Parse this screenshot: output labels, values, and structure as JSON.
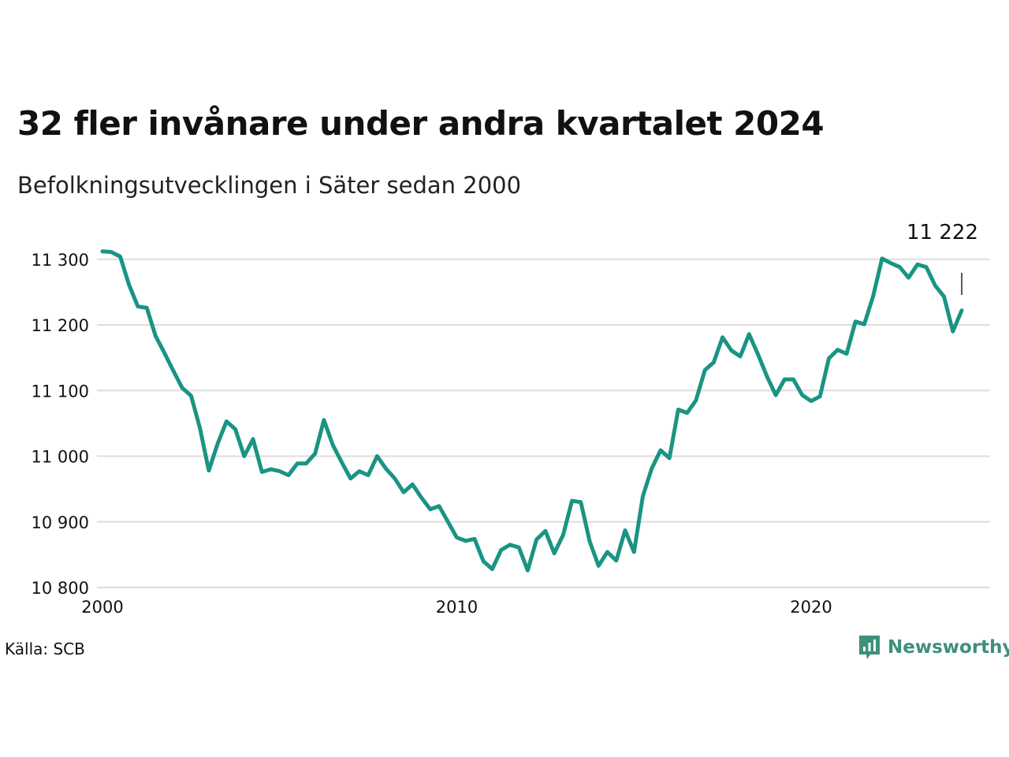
{
  "header": {
    "title": "32 fler invånare under andra kvartalet 2024",
    "subtitle": "Befolkningsutvecklingen i Säter sedan 2000"
  },
  "footer": {
    "source": "Källa: SCB",
    "brand": "Newsworthy"
  },
  "colors": {
    "line": "#1a9483",
    "grid": "#dddddd",
    "brand": "#3f8f7b",
    "text": "#111111"
  },
  "icons": {
    "brand_logo": "newsworthy-logo-icon"
  },
  "chart_data": {
    "type": "line",
    "x_start": 2000,
    "x_step": 0.25,
    "xlim": [
      2000,
      2025
    ],
    "ylim": [
      10800,
      11350
    ],
    "y_ticks": [
      10800,
      10900,
      11000,
      11100,
      11200,
      11300
    ],
    "y_tick_labels": [
      "10 800",
      "10 900",
      "11 000",
      "11 100",
      "11 200",
      "11 300"
    ],
    "x_ticks": [
      2000,
      2010,
      2020
    ],
    "x_tick_labels": [
      "2000",
      "2010",
      "2020"
    ],
    "grid": true,
    "end_label": "11 222",
    "values": [
      11312,
      11311,
      11304,
      11261,
      11228,
      11226,
      11183,
      11157,
      11130,
      11104,
      11092,
      11043,
      10978,
      11019,
      11053,
      11041,
      11000,
      11026,
      10976,
      10980,
      10977,
      10971,
      10989,
      10989,
      11004,
      11055,
      11017,
      10991,
      10966,
      10977,
      10971,
      11000,
      10981,
      10966,
      10945,
      10957,
      10937,
      10919,
      10924,
      10900,
      10876,
      10871,
      10874,
      10840,
      10828,
      10857,
      10865,
      10861,
      10826,
      10873,
      10886,
      10852,
      10880,
      10932,
      10930,
      10870,
      10833,
      10854,
      10841,
      10887,
      10854,
      10939,
      10981,
      11009,
      10997,
      11071,
      11066,
      11085,
      11131,
      11143,
      11181,
      11161,
      11152,
      11186,
      11155,
      11122,
      11093,
      11117,
      11117,
      11093,
      11084,
      11091,
      11149,
      11162,
      11156,
      11205,
      11201,
      11244,
      11301,
      11294,
      11288,
      11272,
      11292,
      11288,
      11260,
      11243,
      11190,
      11222
    ]
  }
}
